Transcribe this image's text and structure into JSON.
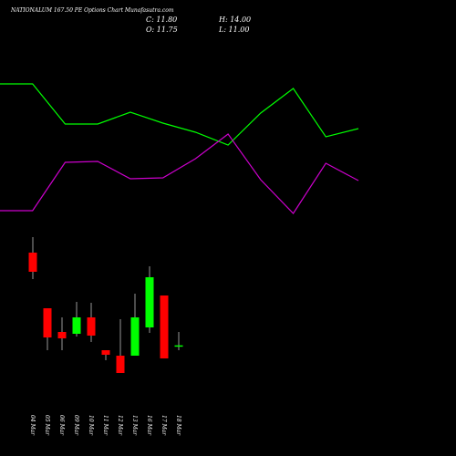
{
  "header": {
    "title": "NATIONALUM 167.50 PE Options Chart Munafasutra.com",
    "ohlc": [
      "C: 11.80",
      "H: 14.00",
      "O: 11.75",
      "L: 11.00"
    ]
  },
  "chart_data": [
    {
      "type": "line",
      "ylim": [
        0,
        100
      ],
      "series": [
        {
          "color": "#00ff00",
          "values": [
            84,
            84,
            62,
            62,
            68.5,
            62.5,
            57.5,
            50.5,
            68,
            81.5,
            55,
            59.5
          ]
        },
        {
          "color": "#cc00cc",
          "values": [
            14.5,
            14.5,
            41,
            41.5,
            32,
            32.5,
            43,
            56.5,
            31.5,
            13,
            40.5,
            31
          ]
        }
      ]
    },
    {
      "type": "candlestick",
      "ylim": [
        1.1,
        31.1
      ],
      "up_color": "#00ff00",
      "down_color": "#ff0000",
      "categories": [
        "04 Mar",
        "05 Mar",
        "06 Mar",
        "09 Mar",
        "10 Mar",
        "11 Mar",
        "12 Mar",
        "13 Mar",
        "16 Mar",
        "17 Mar",
        "18 Mar"
      ],
      "open": [
        27.05,
        17.9,
        14.0,
        13.7,
        16.4,
        11.0,
        10.1,
        10.1,
        14.75,
        20.0,
        11.75
      ],
      "high": [
        29.6,
        17.9,
        16.4,
        18.95,
        18.8,
        11.0,
        16.1,
        20.3,
        24.8,
        20.0,
        14.0
      ],
      "low": [
        22.7,
        11.0,
        11.0,
        13.25,
        12.35,
        9.35,
        7.25,
        10.1,
        13.85,
        9.65,
        11.0
      ],
      "close": [
        23.9,
        13.1,
        12.95,
        16.4,
        13.4,
        10.25,
        7.25,
        16.4,
        23.0,
        9.65,
        11.8
      ]
    }
  ]
}
